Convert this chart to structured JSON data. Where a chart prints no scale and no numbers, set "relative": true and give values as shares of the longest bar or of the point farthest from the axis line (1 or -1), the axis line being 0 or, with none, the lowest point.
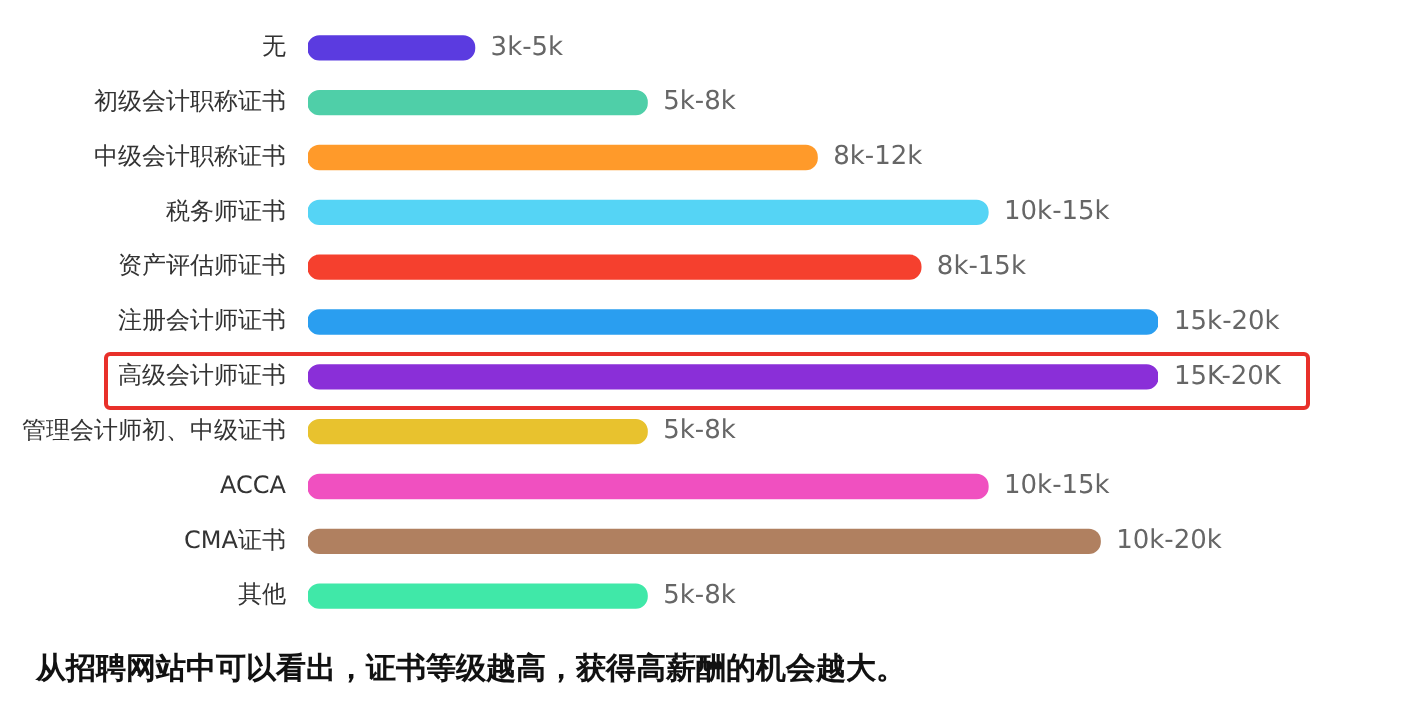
{
  "chart_data": {
    "type": "bar",
    "orientation": "horizontal",
    "relative": true,
    "categories": [
      "无",
      "初级会计职称证书",
      "中级会计职称证书",
      "税务师证书",
      "资产评估师证书",
      "注册会计师证书",
      "高级会计师证书",
      "管理会计师初、中级证书",
      "ACCA",
      "CMA证书",
      "其他"
    ],
    "values": [
      0.196,
      0.399,
      0.599,
      0.8,
      0.721,
      1,
      1,
      0.399,
      0.8,
      0.932,
      0.399
    ],
    "colors": [
      "#5b3be0",
      "#4fcfa8",
      "#ff9a2a",
      "#55d4f5",
      "#f5402e",
      "#2a9ef0",
      "#8a2fd8",
      "#e8c22e",
      "#f050c0",
      "#b08060",
      "#40e8a8"
    ],
    "annotations": [
      {
        "text": "3k-5k",
        "x": 0.196,
        "y": "无"
      },
      {
        "text": "5k-8k",
        "x": 0.399,
        "y": "初级会计职称证书"
      },
      {
        "text": "8k-12k",
        "x": 0.599,
        "y": "中级会计职称证书"
      },
      {
        "text": "10k-15k",
        "x": 0.8,
        "y": "税务师证书"
      },
      {
        "text": "8k-15k",
        "x": 0.721,
        "y": "资产评估师证书"
      },
      {
        "text": "15k-20k",
        "x": 1,
        "y": "注册会计师证书"
      },
      {
        "text": "15K-20K",
        "x": 1,
        "y": "高级会计师证书"
      },
      {
        "text": "5k-8k",
        "x": 0.399,
        "y": "管理会计师初、中级证书"
      },
      {
        "text": "10k-15k",
        "x": 0.8,
        "y": "ACCA"
      },
      {
        "text": "10k-20k",
        "x": 0.932,
        "y": "CMA证书"
      },
      {
        "text": "5k-8k",
        "x": 0.399,
        "y": "其他"
      },
      "从招聘网站中可以看出，证书等级越高，获得高薪酬的机会越大。"
    ]
  }
}
